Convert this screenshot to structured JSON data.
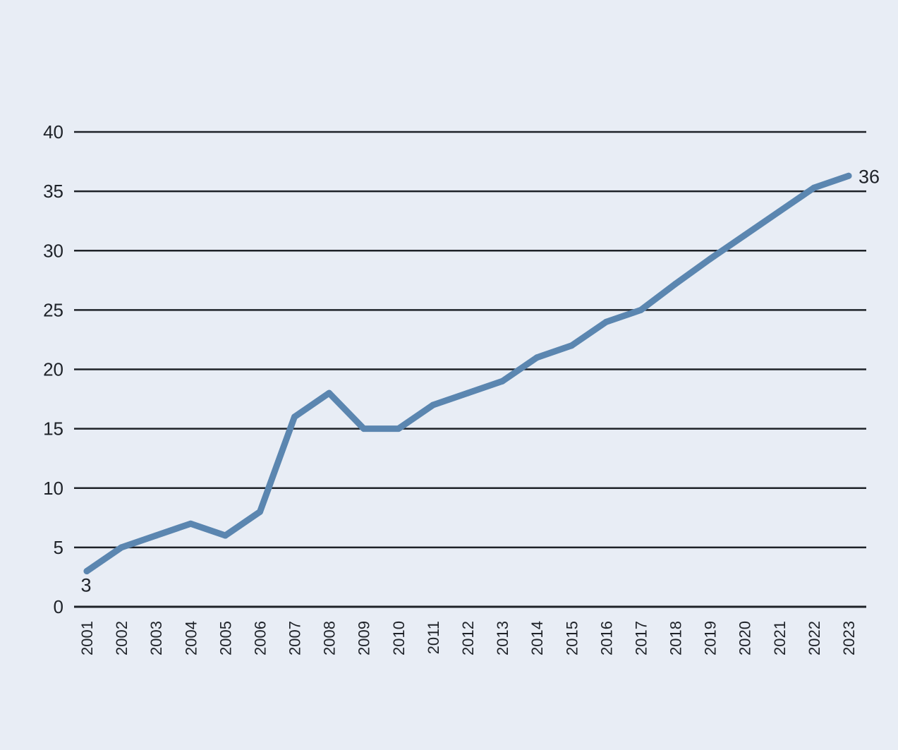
{
  "colors": {
    "background": "#e8edf5",
    "line": "#5b86b0",
    "grid": "#1e2228",
    "text": "#1e2228"
  },
  "chart_data": {
    "type": "line",
    "title": "",
    "xlabel": "",
    "ylabel": "",
    "x": [
      "2001",
      "2002",
      "2003",
      "2004",
      "2005",
      "2006",
      "2007",
      "2008",
      "2009",
      "2010",
      "2011",
      "2012",
      "2013",
      "2014",
      "2015",
      "2016",
      "2017",
      "2018",
      "2019",
      "2020",
      "2021",
      "2022",
      "2023"
    ],
    "series": [
      {
        "values": [
          3,
          5,
          6,
          7,
          6,
          8,
          16,
          18,
          15,
          15,
          17,
          18,
          19,
          21,
          22,
          24,
          25,
          27.2,
          29.3,
          31.3,
          33.3,
          35.3,
          36.3
        ]
      }
    ],
    "ylim": [
      0,
      40
    ],
    "yticks": [
      "0",
      "5",
      "10",
      "15",
      "20",
      "25",
      "30",
      "35",
      "40"
    ],
    "grid": true,
    "legend": "none",
    "data_labels": [
      {
        "index": 0,
        "text": "3"
      },
      {
        "index": 22,
        "text": "36"
      }
    ]
  }
}
